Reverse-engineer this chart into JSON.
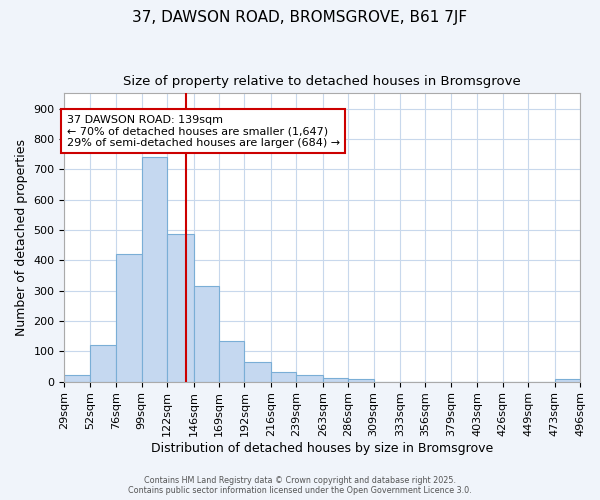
{
  "title1": "37, DAWSON ROAD, BROMSGROVE, B61 7JF",
  "title2": "Size of property relative to detached houses in Bromsgrove",
  "xlabel": "Distribution of detached houses by size in Bromsgrove",
  "ylabel": "Number of detached properties",
  "bar_values": [
    22,
    122,
    422,
    740,
    485,
    315,
    133,
    66,
    30,
    22,
    11,
    8,
    0,
    0,
    0,
    0,
    0,
    0,
    0,
    8
  ],
  "bar_labels": [
    "29sqm",
    "52sqm",
    "76sqm",
    "99sqm",
    "122sqm",
    "146sqm",
    "169sqm",
    "192sqm",
    "216sqm",
    "239sqm",
    "263sqm",
    "286sqm",
    "309sqm",
    "333sqm",
    "356sqm",
    "379sqm",
    "403sqm",
    "426sqm",
    "449sqm",
    "473sqm",
    "496sqm"
  ],
  "bin_edges": [
    29,
    52,
    76,
    99,
    122,
    146,
    169,
    192,
    216,
    239,
    263,
    286,
    309,
    333,
    356,
    379,
    403,
    426,
    449,
    473,
    496
  ],
  "bar_color": "#c5d8f0",
  "bar_edgecolor": "#7aaed6",
  "vline_x": 139,
  "vline_color": "#cc0000",
  "annotation_text": "37 DAWSON ROAD: 139sqm\n← 70% of detached houses are smaller (1,647)\n29% of semi-detached houses are larger (684) →",
  "annotation_box_facecolor": "#ffffff",
  "annotation_box_edgecolor": "#cc0000",
  "ylim": [
    0,
    950
  ],
  "yticks": [
    0,
    100,
    200,
    300,
    400,
    500,
    600,
    700,
    800,
    900
  ],
  "fig_bg_color": "#f0f4fa",
  "plot_bg_color": "#ffffff",
  "grid_color": "#c8d8ec",
  "title_fontsize": 11,
  "subtitle_fontsize": 9.5,
  "axis_label_fontsize": 9,
  "tick_fontsize": 8,
  "footer_text": "Contains HM Land Registry data © Crown copyright and database right 2025.\nContains public sector information licensed under the Open Government Licence 3.0."
}
